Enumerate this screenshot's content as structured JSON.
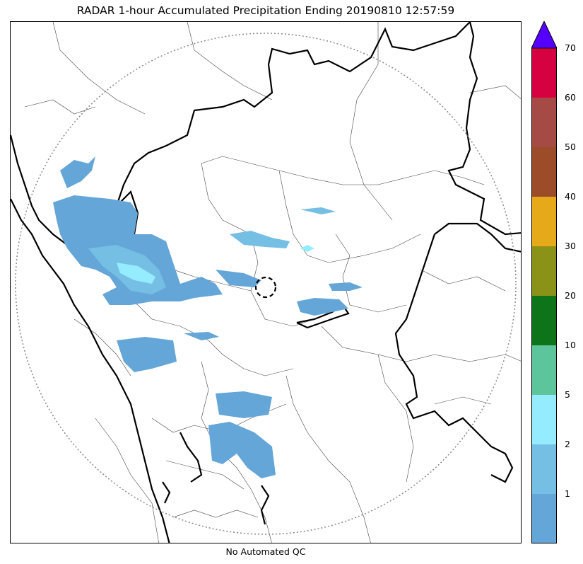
{
  "title": "RADAR 1-hour Accumulated Precipitation Ending 20190810 12:57:59",
  "footer": "No Automated QC",
  "colorbar": {
    "extend_color": "#5500ff",
    "bands": [
      {
        "color": "#65a6d8"
      },
      {
        "color": "#75bee4"
      },
      {
        "color": "#96ecff"
      },
      {
        "color": "#5cc59b"
      },
      {
        "color": "#0d7419"
      },
      {
        "color": "#8a9218"
      },
      {
        "color": "#e6a91a"
      },
      {
        "color": "#9c4c28"
      },
      {
        "color": "#a54a45"
      },
      {
        "color": "#d50141"
      }
    ],
    "ticks": [
      "1",
      "2",
      "5",
      "10",
      "20",
      "30",
      "40",
      "50",
      "60",
      "70"
    ]
  },
  "map": {
    "range_ring_color": "#888888",
    "radar_site_marker": "dashed-circle",
    "precip_colors": {
      "light": "#65a6d8",
      "mid": "#75bee4",
      "heavy": "#96ecff"
    }
  }
}
